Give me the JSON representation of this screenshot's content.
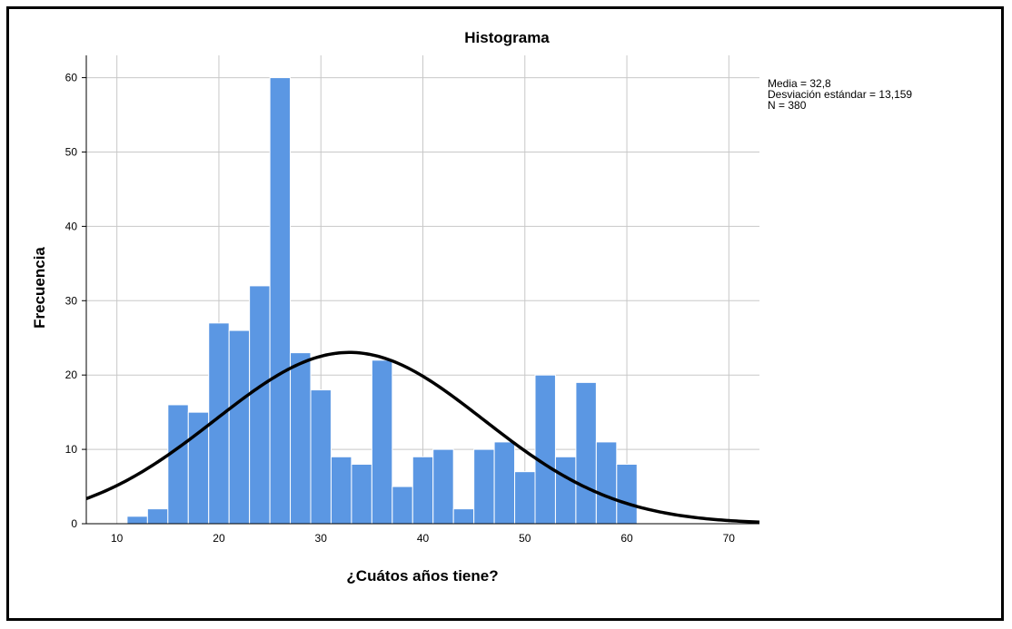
{
  "chart_data": {
    "type": "bar",
    "title": "Histograma",
    "xlabel": "¿Cuátos años tiene?",
    "ylabel": "Frecuencia",
    "xlim": [
      7,
      73
    ],
    "ylim": [
      0,
      63
    ],
    "x_ticks": [
      10,
      20,
      30,
      40,
      50,
      60,
      70
    ],
    "y_ticks": [
      0,
      10,
      20,
      30,
      40,
      50,
      60
    ],
    "grid": true,
    "bin_width": 2,
    "bins": [
      {
        "start": 11,
        "value": 1
      },
      {
        "start": 13,
        "value": 2
      },
      {
        "start": 15,
        "value": 16
      },
      {
        "start": 17,
        "value": 15
      },
      {
        "start": 19,
        "value": 27
      },
      {
        "start": 21,
        "value": 26
      },
      {
        "start": 23,
        "value": 32
      },
      {
        "start": 25,
        "value": 60
      },
      {
        "start": 27,
        "value": 23
      },
      {
        "start": 29,
        "value": 18
      },
      {
        "start": 31,
        "value": 9
      },
      {
        "start": 33,
        "value": 8
      },
      {
        "start": 35,
        "value": 22
      },
      {
        "start": 37,
        "value": 5
      },
      {
        "start": 39,
        "value": 9
      },
      {
        "start": 41,
        "value": 10
      },
      {
        "start": 43,
        "value": 2
      },
      {
        "start": 45,
        "value": 10
      },
      {
        "start": 47,
        "value": 11
      },
      {
        "start": 49,
        "value": 7
      },
      {
        "start": 51,
        "value": 20
      },
      {
        "start": 53,
        "value": 9
      },
      {
        "start": 55,
        "value": 19
      },
      {
        "start": 57,
        "value": 11
      },
      {
        "start": 59,
        "value": 8
      }
    ],
    "normal_curve": {
      "mean": 32.8,
      "sd": 13.159,
      "n": 380
    },
    "stats_lines": [
      "Media = 32,8",
      "Desviación estándar = 13,159",
      "N = 380"
    ],
    "legend_position": "top-right",
    "bar_color": "#5b97e3",
    "curve_color": "#000000",
    "grid_color": "#c8c8c8"
  }
}
